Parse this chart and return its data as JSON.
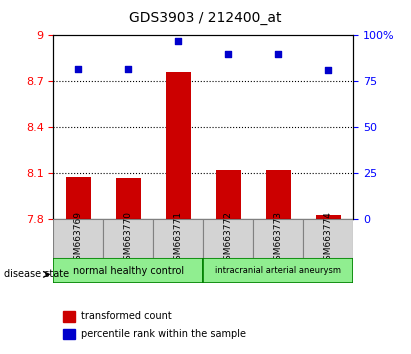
{
  "title": "GDS3903 / 212400_at",
  "samples": [
    "GSM663769",
    "GSM663770",
    "GSM663771",
    "GSM663772",
    "GSM663773",
    "GSM663774"
  ],
  "bar_values": [
    8.08,
    8.07,
    8.76,
    8.12,
    8.12,
    7.83
  ],
  "bar_baseline": 7.8,
  "percentile_values": [
    82,
    82,
    97,
    90,
    90,
    81
  ],
  "ylim_left": [
    7.8,
    9.0
  ],
  "ylim_right": [
    0,
    100
  ],
  "yticks_left": [
    7.8,
    8.1,
    8.4,
    8.7,
    9.0
  ],
  "ytick_labels_left": [
    "7.8",
    "8.1",
    "8.4",
    "8.7",
    "9"
  ],
  "yticks_right": [
    0,
    25,
    50,
    75,
    100
  ],
  "ytick_labels_right": [
    "0",
    "25",
    "50",
    "75",
    "100%"
  ],
  "bar_color": "#cc0000",
  "dot_color": "#0000cc",
  "group1_label": "normal healthy control",
  "group2_label": "intracranial arterial aneurysm",
  "group_color": "#90ee90",
  "disease_label": "disease state",
  "legend_bar_label": "transformed count",
  "legend_dot_label": "percentile rank within the sample",
  "bg_color": "#d3d3d3",
  "plot_bg": "#ffffff"
}
